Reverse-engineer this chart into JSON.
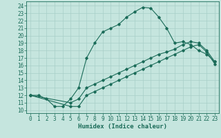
{
  "xlabel": "Humidex (Indice chaleur)",
  "bg_color": "#c5e5de",
  "line_color": "#1a6b58",
  "grid_color": "#a8cfc8",
  "xlim": [
    -0.5,
    23.5
  ],
  "ylim": [
    9.6,
    24.6
  ],
  "xticks": [
    0,
    1,
    2,
    3,
    4,
    5,
    6,
    7,
    8,
    9,
    10,
    11,
    12,
    13,
    14,
    15,
    16,
    17,
    18,
    19,
    20,
    21,
    22,
    23
  ],
  "yticks": [
    10,
    11,
    12,
    13,
    14,
    15,
    16,
    17,
    18,
    19,
    20,
    21,
    22,
    23,
    24
  ],
  "curve1_x": [
    0,
    1,
    2,
    3,
    4,
    5,
    6,
    7,
    8,
    9,
    10,
    11,
    12,
    13,
    14,
    15,
    16,
    17,
    18,
    19,
    20,
    21,
    22,
    23
  ],
  "curve1_y": [
    12.0,
    12.0,
    11.5,
    10.5,
    10.5,
    11.5,
    13.0,
    17.0,
    19.0,
    20.5,
    21.0,
    21.5,
    22.5,
    23.2,
    23.8,
    23.7,
    22.5,
    21.0,
    19.0,
    19.2,
    18.8,
    18.0,
    17.5,
    16.5
  ],
  "curve2_x": [
    0,
    5,
    6,
    7,
    8,
    9,
    10,
    11,
    12,
    13,
    14,
    15,
    16,
    17,
    18,
    19,
    20,
    21,
    22,
    23
  ],
  "curve2_y": [
    12.0,
    11.0,
    11.5,
    13.0,
    13.5,
    14.0,
    14.5,
    15.0,
    15.5,
    16.0,
    16.5,
    17.0,
    17.5,
    17.8,
    18.2,
    18.8,
    19.2,
    19.0,
    18.0,
    16.5
  ],
  "curve3_x": [
    0,
    5,
    6,
    7,
    8,
    9,
    10,
    11,
    12,
    13,
    14,
    15,
    16,
    17,
    18,
    19,
    20,
    21,
    22,
    23
  ],
  "curve3_y": [
    12.0,
    10.5,
    10.5,
    12.0,
    12.5,
    13.0,
    13.5,
    14.0,
    14.5,
    15.0,
    15.5,
    16.0,
    16.5,
    17.0,
    17.5,
    18.0,
    18.5,
    18.8,
    17.8,
    16.2
  ],
  "tick_fontsize": 5.5,
  "label_fontsize": 6.5
}
